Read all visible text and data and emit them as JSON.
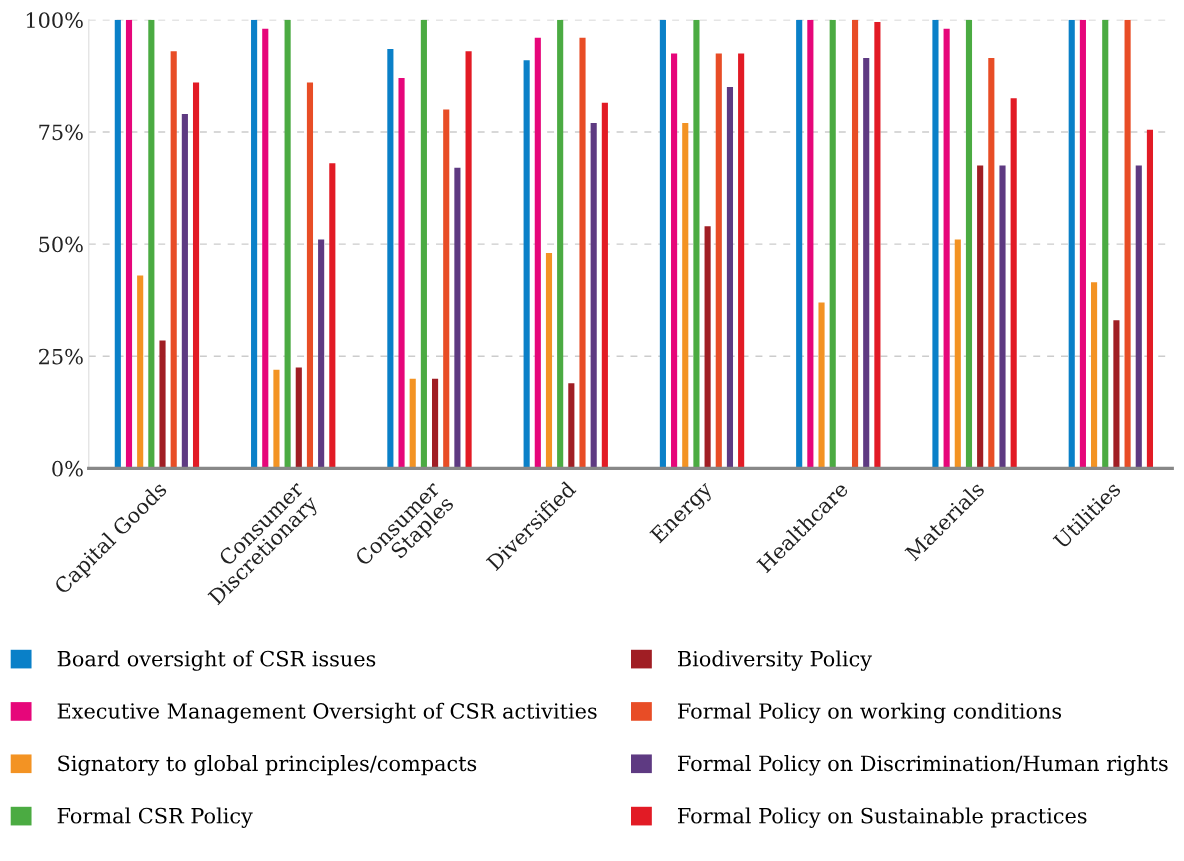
{
  "chart_data": {
    "type": "bar",
    "categories": [
      "Capital Goods",
      "Consumer\nDiscretionary",
      "Consumer\nStaples",
      "Diversified",
      "Energy",
      "Healthcare",
      "Materials",
      "Utilities"
    ],
    "series": [
      {
        "name": "Board oversight of CSR issues",
        "color": "#0a80c8",
        "values": [
          100,
          100,
          93.5,
          91,
          100,
          100,
          100,
          100
        ]
      },
      {
        "name": "Executive Management Oversight of CSR activities",
        "color": "#e6067a",
        "values": [
          100,
          98,
          87,
          96,
          92.5,
          100,
          98,
          100
        ]
      },
      {
        "name": "Signatory to global principles/compacts",
        "color": "#f39323",
        "values": [
          43,
          22,
          20,
          48,
          77,
          37,
          51,
          41.5
        ]
      },
      {
        "name": "Formal CSR Policy",
        "color": "#4bab42",
        "values": [
          100,
          100,
          100,
          100,
          100,
          100,
          100,
          100
        ]
      },
      {
        "name": "Biodiversity Policy",
        "color": "#a01e24",
        "values": [
          28.5,
          22.5,
          20,
          19,
          54,
          0,
          67.5,
          33
        ]
      },
      {
        "name": "Formal Policy on working conditions",
        "color": "#e84d26",
        "values": [
          93,
          86,
          80,
          96,
          92.5,
          100,
          91.5,
          100
        ]
      },
      {
        "name": "Formal Policy on Discrimination/Human rights",
        "color": "#5e3a82",
        "values": [
          79,
          51,
          67,
          77,
          85,
          91.5,
          67.5,
          67.5
        ]
      },
      {
        "name": "Formal Policy on Sustainable practices",
        "color": "#e21b25",
        "values": [
          86,
          68,
          93,
          81.5,
          92.5,
          99.5,
          82.5,
          75.5
        ]
      }
    ],
    "ylim": [
      0,
      100
    ],
    "yticks": [
      {
        "value": 0,
        "label": "0%"
      },
      {
        "value": 25,
        "label": "25%"
      },
      {
        "value": 50,
        "label": "50%"
      },
      {
        "value": 75,
        "label": "75%"
      },
      {
        "value": 100,
        "label": "100%"
      }
    ],
    "grid": "y",
    "legend": "bottom"
  }
}
